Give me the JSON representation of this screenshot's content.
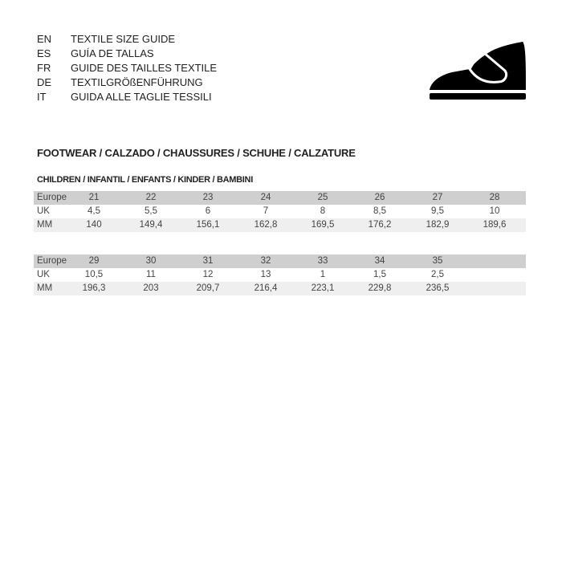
{
  "languages": [
    {
      "code": "EN",
      "text": "TEXTILE SIZE GUIDE"
    },
    {
      "code": "ES",
      "text": "GUÍA DE TALLAS"
    },
    {
      "code": "FR",
      "text": "GUIDE DES TAILLES TEXTILE"
    },
    {
      "code": "DE",
      "text": "TEXTILGRÖßENFÜHRUNG"
    },
    {
      "code": "IT",
      "text": "GUIDA ALLE TAGLIE TESSILI"
    }
  ],
  "icon": "shoe-icon",
  "section_title": "FOOTWEAR / CALZADO / CHAUSSURES / SCHUHE / CALZATURE",
  "subsection_title": "CHILDREN / INFANTIL / ENFANTS / KINDER / BAMBINI",
  "tables": [
    {
      "rows": [
        {
          "label": "Europe",
          "values": [
            "21",
            "22",
            "23",
            "24",
            "25",
            "26",
            "27",
            "28"
          ]
        },
        {
          "label": "UK",
          "values": [
            "4,5",
            "5,5",
            "6",
            "7",
            "8",
            "8,5",
            "9,5",
            "10"
          ]
        },
        {
          "label": "MM",
          "values": [
            "140",
            "149,4",
            "156,1",
            "162,8",
            "169,5",
            "176,2",
            "182,9",
            "189,6"
          ]
        }
      ]
    },
    {
      "rows": [
        {
          "label": "Europe",
          "values": [
            "29",
            "30",
            "31",
            "32",
            "33",
            "34",
            "35"
          ]
        },
        {
          "label": "UK",
          "values": [
            "10,5",
            "11",
            "12",
            "13",
            "1",
            "1,5",
            "2,5"
          ]
        },
        {
          "label": "MM",
          "values": [
            "196,3",
            "203",
            "209,7",
            "216,4",
            "223,1",
            "229,8",
            "236,5"
          ]
        }
      ]
    }
  ]
}
